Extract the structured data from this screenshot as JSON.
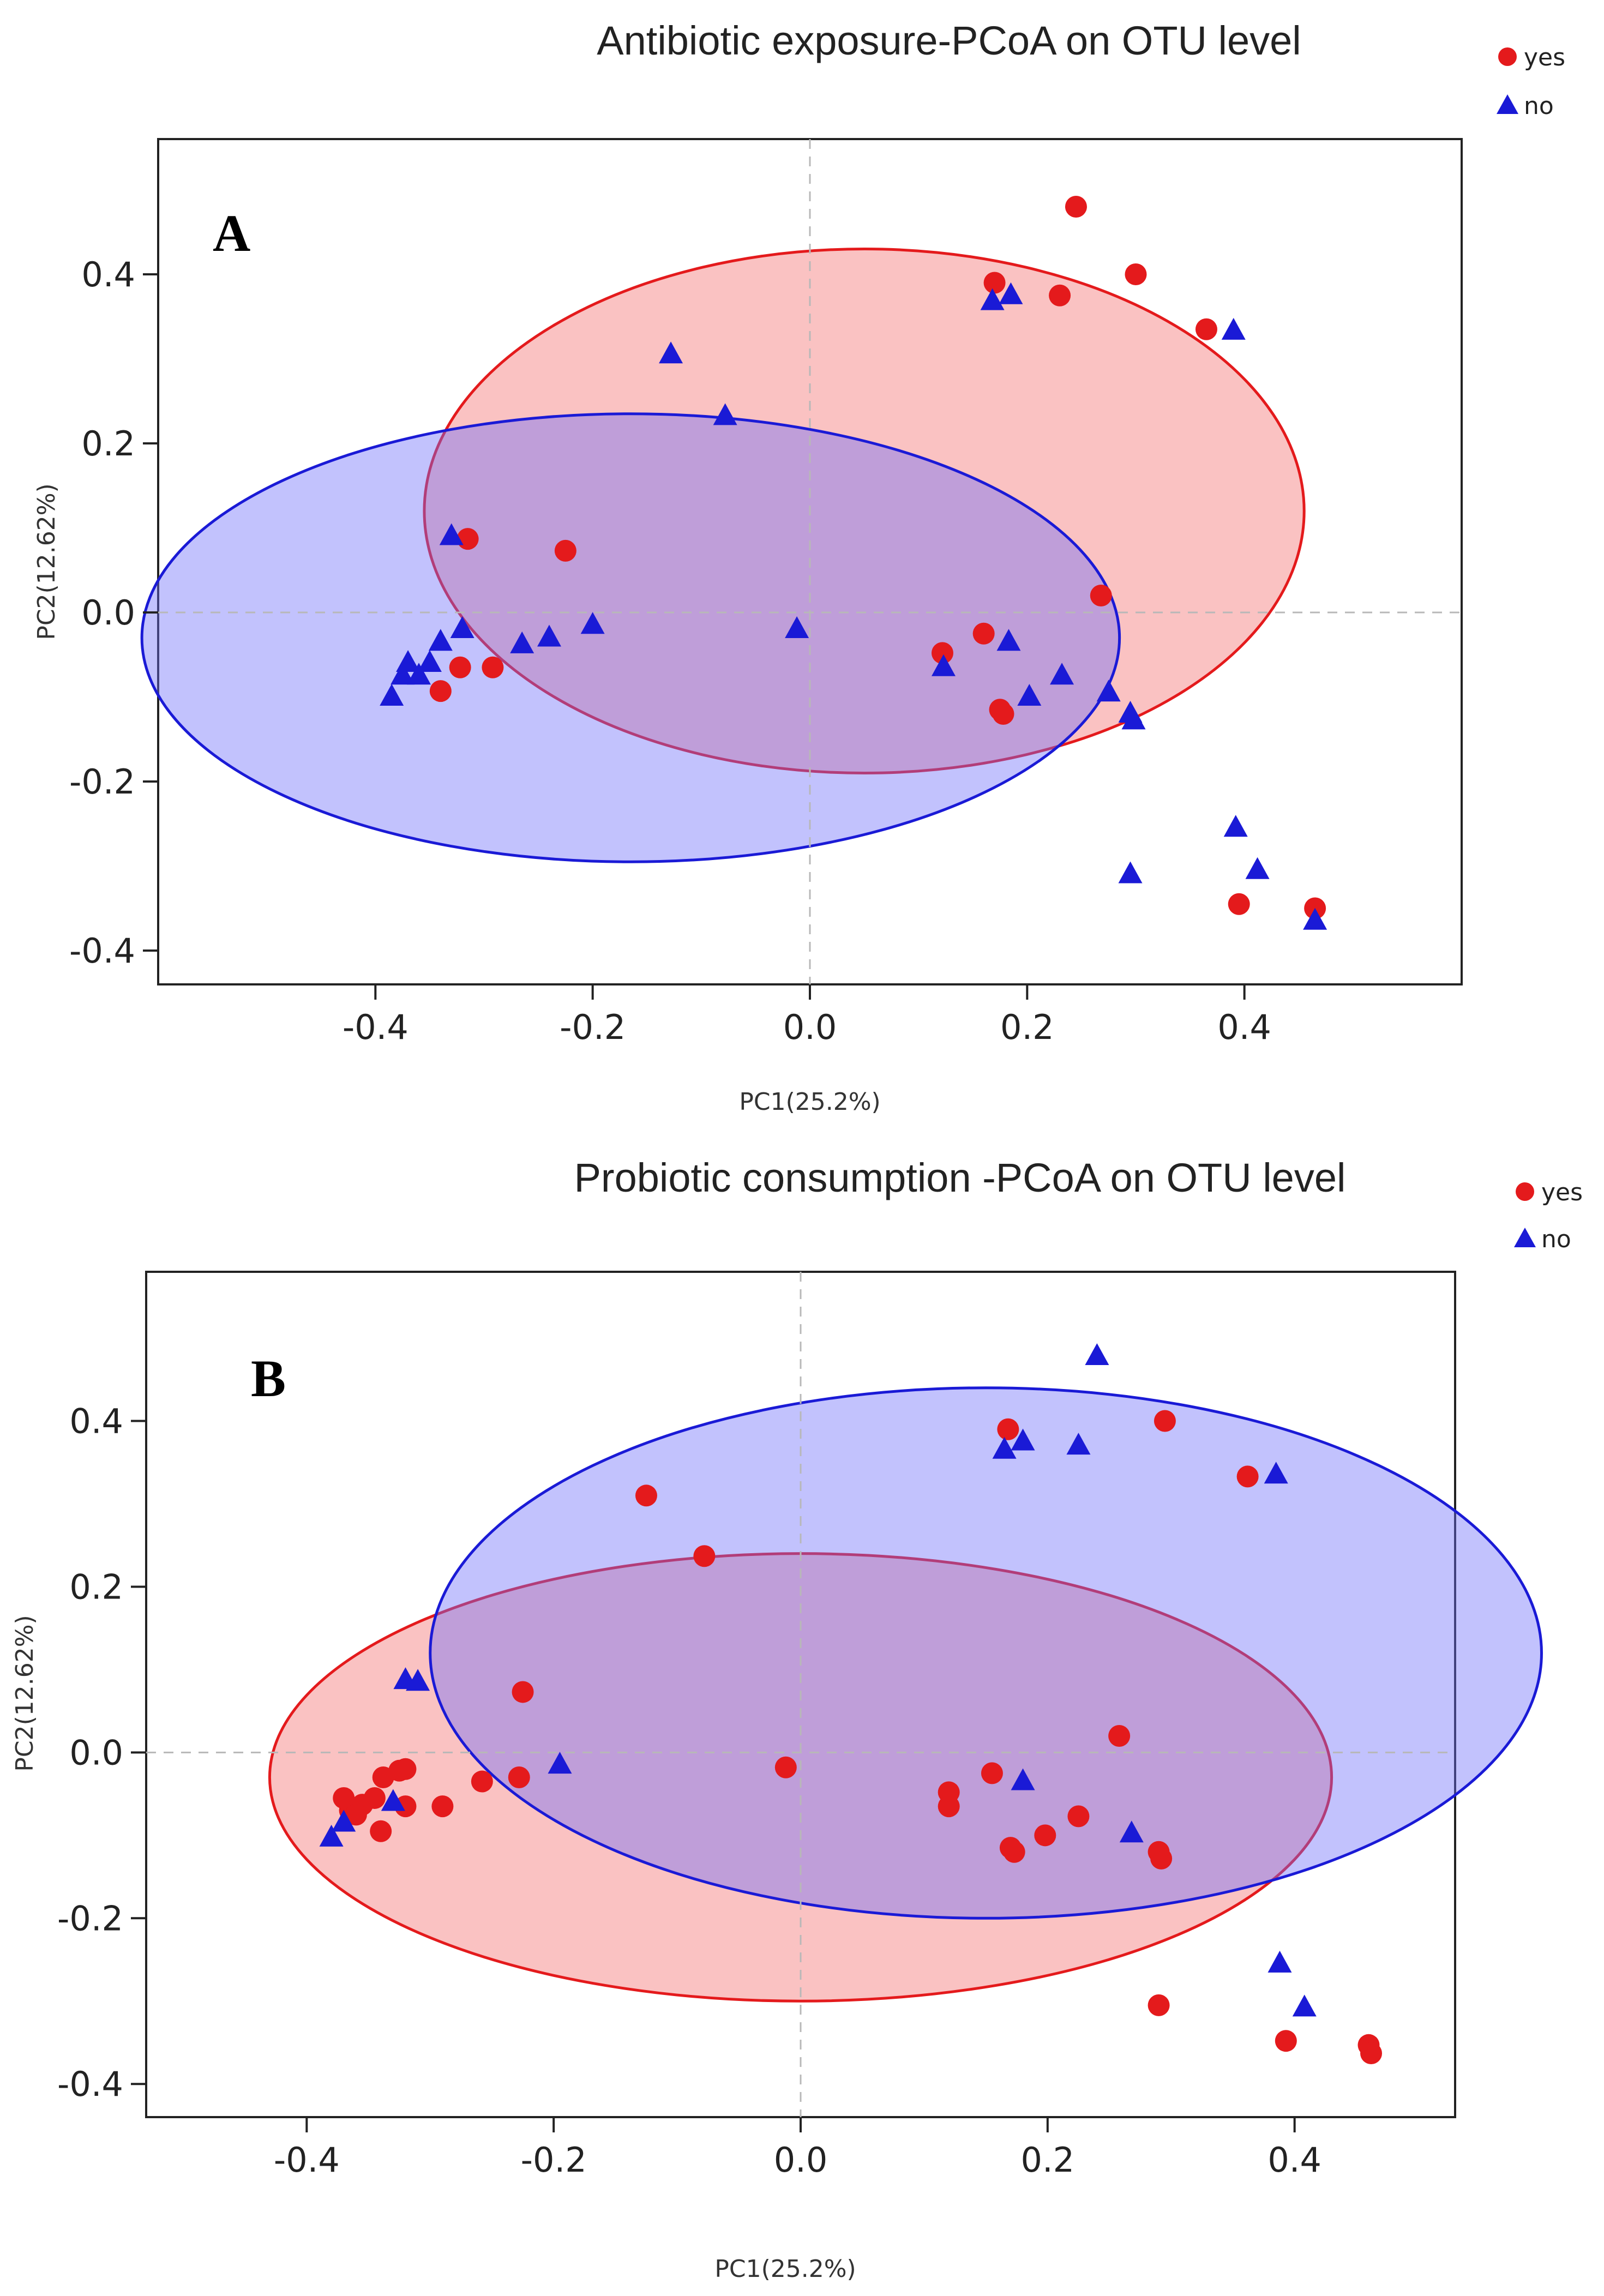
{
  "chart_data": [
    {
      "panel": "A",
      "type": "scatter",
      "title": "Antibiotic exposure-PCoA on OTU level",
      "xlabel": "PC1(25.2%)",
      "ylabel": "PC2(12.62%)",
      "xlim": [
        -0.6,
        0.6
      ],
      "ylim": [
        -0.44,
        0.56
      ],
      "xticks": [
        -0.4,
        -0.2,
        0.0,
        0.2,
        0.4
      ],
      "yticks": [
        -0.4,
        -0.2,
        0.0,
        0.2,
        0.4
      ],
      "xtick_labels": [
        "-0.4",
        "-0.2",
        "0.0",
        "0.2",
        "0.4"
      ],
      "ytick_labels": [
        "-0.4",
        "-0.2",
        "0.0",
        "0.2",
        "0.4"
      ],
      "legend_position": "top-right",
      "series": [
        {
          "name": "yes",
          "marker": "circle",
          "color": "#e41a1c",
          "points": [
            [
              0.245,
              0.48
            ],
            [
              0.17,
              0.39
            ],
            [
              0.23,
              0.375
            ],
            [
              0.3,
              0.4
            ],
            [
              0.365,
              0.335
            ],
            [
              -0.315,
              0.087
            ],
            [
              -0.225,
              0.073
            ],
            [
              0.268,
              0.02
            ],
            [
              0.16,
              -0.025
            ],
            [
              0.122,
              -0.048
            ],
            [
              -0.322,
              -0.065
            ],
            [
              -0.292,
              -0.065
            ],
            [
              -0.34,
              -0.093
            ],
            [
              0.175,
              -0.115
            ],
            [
              0.178,
              -0.12
            ],
            [
              0.395,
              -0.345
            ],
            [
              0.465,
              -0.35
            ]
          ],
          "ellipse": {
            "cx": 0.05,
            "cy": 0.12,
            "rx": 0.405,
            "ry": 0.31,
            "rotation_deg": 0
          }
        },
        {
          "name": "no",
          "marker": "triangle",
          "color": "#1a1ad6",
          "points": [
            [
              -0.128,
              0.305
            ],
            [
              -0.078,
              0.232
            ],
            [
              0.168,
              0.368
            ],
            [
              0.185,
              0.375
            ],
            [
              0.39,
              0.333
            ],
            [
              -0.33,
              0.09
            ],
            [
              -0.012,
              -0.02
            ],
            [
              -0.2,
              -0.015
            ],
            [
              -0.24,
              -0.03
            ],
            [
              -0.265,
              -0.038
            ],
            [
              -0.32,
              -0.02
            ],
            [
              -0.34,
              -0.035
            ],
            [
              -0.35,
              -0.06
            ],
            [
              -0.36,
              -0.075
            ],
            [
              -0.37,
              -0.06
            ],
            [
              -0.375,
              -0.075
            ],
            [
              -0.385,
              -0.1
            ],
            [
              0.123,
              -0.065
            ],
            [
              0.183,
              -0.035
            ],
            [
              0.232,
              -0.075
            ],
            [
              0.202,
              -0.1
            ],
            [
              0.275,
              -0.095
            ],
            [
              0.295,
              -0.12
            ],
            [
              0.298,
              -0.128
            ],
            [
              0.392,
              -0.255
            ],
            [
              0.412,
              -0.305
            ],
            [
              0.295,
              -0.31
            ],
            [
              0.465,
              -0.365
            ]
          ],
          "ellipse": {
            "cx": -0.165,
            "cy": -0.03,
            "rx": 0.45,
            "ry": 0.265,
            "rotation_deg": 0
          }
        }
      ]
    },
    {
      "panel": "B",
      "type": "scatter",
      "title": "Probiotic consumption -PCoA on OTU level",
      "xlabel": "PC1(25.2%)",
      "ylabel": "PC2(12.62%)",
      "xlim": [
        -0.53,
        0.53
      ],
      "ylim": [
        -0.44,
        0.58
      ],
      "xticks": [
        -0.4,
        -0.2,
        0.0,
        0.2,
        0.4
      ],
      "yticks": [
        -0.4,
        -0.2,
        0.0,
        0.2,
        0.4
      ],
      "xtick_labels": [
        "-0.4",
        "-0.2",
        "0.0",
        "0.2",
        "0.4"
      ],
      "ytick_labels": [
        "-0.4",
        "-0.2",
        "0.0",
        "0.2",
        "0.4"
      ],
      "legend_position": "top-right",
      "series": [
        {
          "name": "yes",
          "marker": "circle",
          "color": "#e41a1c",
          "points": [
            [
              -0.125,
              0.31
            ],
            [
              -0.078,
              0.237
            ],
            [
              0.168,
              0.39
            ],
            [
              0.295,
              0.4
            ],
            [
              0.362,
              0.333
            ],
            [
              -0.225,
              0.073
            ],
            [
              0.258,
              0.02
            ],
            [
              -0.012,
              -0.018
            ],
            [
              0.155,
              -0.025
            ],
            [
              0.12,
              -0.048
            ],
            [
              0.12,
              -0.065
            ],
            [
              0.225,
              -0.077
            ],
            [
              0.198,
              -0.1
            ],
            [
              0.17,
              -0.115
            ],
            [
              0.173,
              -0.12
            ],
            [
              0.29,
              -0.12
            ],
            [
              0.292,
              -0.128
            ],
            [
              -0.228,
              -0.03
            ],
            [
              -0.258,
              -0.035
            ],
            [
              -0.29,
              -0.065
            ],
            [
              -0.32,
              -0.02
            ],
            [
              -0.325,
              -0.022
            ],
            [
              -0.338,
              -0.03
            ],
            [
              -0.345,
              -0.055
            ],
            [
              -0.355,
              -0.063
            ],
            [
              -0.32,
              -0.065
            ],
            [
              -0.365,
              -0.07
            ],
            [
              -0.37,
              -0.055
            ],
            [
              -0.36,
              -0.075
            ],
            [
              -0.34,
              -0.095
            ],
            [
              0.29,
              -0.305
            ],
            [
              0.393,
              -0.348
            ],
            [
              0.46,
              -0.353
            ],
            [
              0.462,
              -0.363
            ]
          ],
          "ellipse": {
            "cx": 0.0,
            "cy": -0.03,
            "rx": 0.43,
            "ry": 0.27,
            "rotation_deg": 0
          }
        },
        {
          "name": "no",
          "marker": "triangle",
          "color": "#1a1ad6",
          "points": [
            [
              0.24,
              0.478
            ],
            [
              0.165,
              0.365
            ],
            [
              0.18,
              0.375
            ],
            [
              0.225,
              0.37
            ],
            [
              0.385,
              0.335
            ],
            [
              -0.32,
              0.087
            ],
            [
              -0.31,
              0.085
            ],
            [
              -0.195,
              -0.015
            ],
            [
              -0.33,
              -0.06
            ],
            [
              -0.37,
              -0.085
            ],
            [
              -0.38,
              -0.103
            ],
            [
              0.18,
              -0.035
            ],
            [
              0.268,
              -0.098
            ],
            [
              0.388,
              -0.255
            ],
            [
              0.408,
              -0.308
            ]
          ],
          "ellipse": {
            "cx": 0.15,
            "cy": 0.12,
            "rx": 0.45,
            "ry": 0.32,
            "rotation_deg": 0
          }
        }
      ]
    }
  ]
}
